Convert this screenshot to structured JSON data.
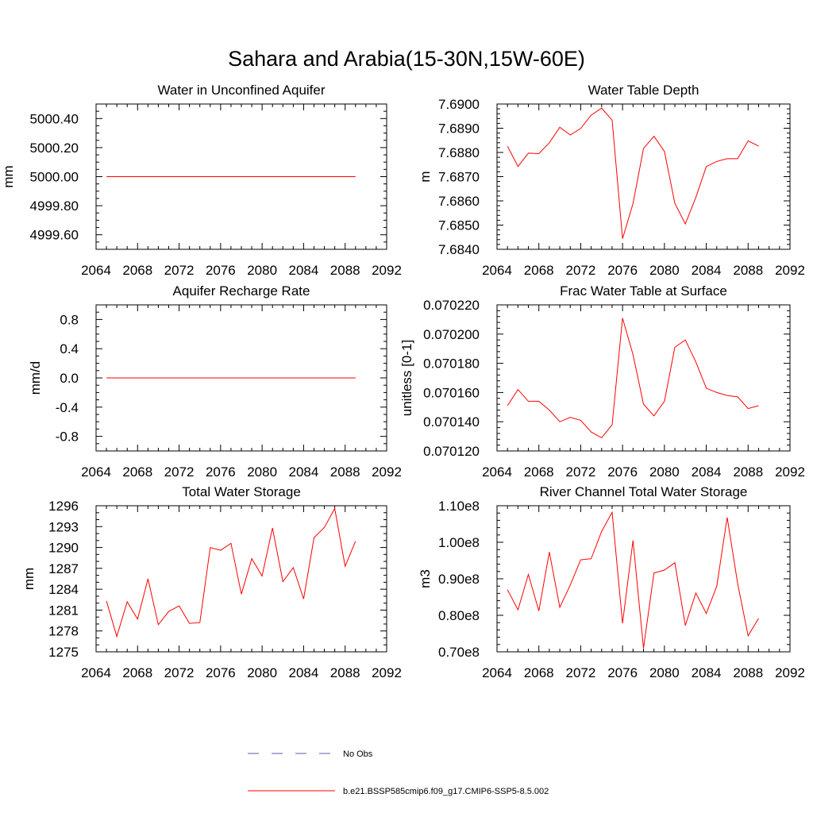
{
  "figure": {
    "title": "Sahara and Arabia(15-30N,15W-60E)",
    "legend": [
      {
        "label": "No Obs",
        "color": "#5a5ab4",
        "dash": true
      },
      {
        "label": "b.e21.BSSP585cmip6.f09_g17.CMIP6-SSP5-8.5.002",
        "color": "#ff0000",
        "dash": false
      }
    ]
  },
  "chart_data": [
    {
      "type": "line",
      "title": "Water in Unconfined Aquifer",
      "xlabel": "",
      "ylabel": "mm",
      "xlim": [
        2064,
        2092
      ],
      "ylim": [
        4999.5,
        5000.5
      ],
      "xticks": [
        "2064",
        "2068",
        "2072",
        "2076",
        "2080",
        "2084",
        "2088",
        "2092"
      ],
      "yticks": [
        "4999.60",
        "4999.80",
        "5000.00",
        "5000.20",
        "5000.40"
      ],
      "ytick_values": [
        4999.6,
        4999.8,
        5000.0,
        5000.2,
        5000.4
      ],
      "yminor": [
        4999.5,
        4999.55,
        4999.65,
        4999.7,
        4999.75,
        4999.85,
        4999.9,
        4999.95,
        5000.05,
        5000.1,
        5000.15,
        5000.25,
        5000.3,
        5000.35,
        5000.45,
        5000.5
      ],
      "x": [
        2065,
        2066,
        2067,
        2068,
        2069,
        2070,
        2071,
        2072,
        2073,
        2074,
        2075,
        2076,
        2077,
        2078,
        2079,
        2080,
        2081,
        2082,
        2083,
        2084,
        2085,
        2086,
        2087,
        2088,
        2089
      ],
      "series": [
        {
          "color": "#ff0000",
          "values": [
            5000,
            5000,
            5000,
            5000,
            5000,
            5000,
            5000,
            5000,
            5000,
            5000,
            5000,
            5000,
            5000,
            5000,
            5000,
            5000,
            5000,
            5000,
            5000,
            5000,
            5000,
            5000,
            5000,
            5000,
            5000
          ]
        }
      ]
    },
    {
      "type": "line",
      "title": "Water Table Depth",
      "xlabel": "",
      "ylabel": "m",
      "xlim": [
        2064,
        2092
      ],
      "ylim": [
        7.684,
        7.69
      ],
      "xticks": [
        "2064",
        "2068",
        "2072",
        "2076",
        "2080",
        "2084",
        "2088",
        "2092"
      ],
      "yticks": [
        "7.6840",
        "7.6850",
        "7.6860",
        "7.6870",
        "7.6880",
        "7.6890",
        "7.6900"
      ],
      "ytick_values": [
        7.684,
        7.685,
        7.686,
        7.687,
        7.688,
        7.689,
        7.69
      ],
      "yminor": [
        7.6842,
        7.6844,
        7.6846,
        7.6848,
        7.6852,
        7.6854,
        7.6856,
        7.6858,
        7.6862,
        7.6864,
        7.6866,
        7.6868,
        7.6872,
        7.6874,
        7.6876,
        7.6878,
        7.6882,
        7.6884,
        7.6886,
        7.6888,
        7.6892,
        7.6894,
        7.6896,
        7.6898
      ],
      "x": [
        2065,
        2066,
        2067,
        2068,
        2069,
        2070,
        2071,
        2072,
        2073,
        2074,
        2075,
        2076,
        2077,
        2078,
        2079,
        2080,
        2081,
        2082,
        2083,
        2084,
        2085,
        2086,
        2087,
        2088,
        2089
      ],
      "series": [
        {
          "color": "#ff0000",
          "values": [
            7.68826,
            7.68742,
            7.68797,
            7.68795,
            7.6884,
            7.68904,
            7.68872,
            7.68899,
            7.68954,
            7.68983,
            7.68933,
            7.68444,
            7.68589,
            7.68816,
            7.68867,
            7.68804,
            7.6859,
            7.68505,
            7.68614,
            7.68742,
            7.68763,
            7.68774,
            7.68774,
            7.68848,
            7.68826
          ]
        }
      ]
    },
    {
      "type": "line",
      "title": "Aquifer Recharge Rate",
      "xlabel": "",
      "ylabel": "mm/d",
      "xlim": [
        2064,
        2092
      ],
      "ylim": [
        -1.0,
        1.0
      ],
      "xticks": [
        "2064",
        "2068",
        "2072",
        "2076",
        "2080",
        "2084",
        "2088",
        "2092"
      ],
      "yticks": [
        "-0.8",
        "-0.4",
        "0.0",
        "0.4",
        "0.8"
      ],
      "ytick_values": [
        -0.8,
        -0.4,
        0.0,
        0.4,
        0.8
      ],
      "yminor": [
        -1.0,
        -0.9,
        -0.7,
        -0.6,
        -0.5,
        -0.3,
        -0.2,
        -0.1,
        0.1,
        0.2,
        0.3,
        0.5,
        0.6,
        0.7,
        0.9,
        1.0
      ],
      "x": [
        2065,
        2066,
        2067,
        2068,
        2069,
        2070,
        2071,
        2072,
        2073,
        2074,
        2075,
        2076,
        2077,
        2078,
        2079,
        2080,
        2081,
        2082,
        2083,
        2084,
        2085,
        2086,
        2087,
        2088,
        2089
      ],
      "series": [
        {
          "color": "#ff0000",
          "values": [
            0,
            0,
            0,
            0,
            0,
            0,
            0,
            0,
            0,
            0,
            0,
            0,
            0,
            0,
            0,
            0,
            0,
            0,
            0,
            0,
            0,
            0,
            0,
            0,
            0
          ]
        }
      ]
    },
    {
      "type": "line",
      "title": "Frac Water Table at Surface",
      "xlabel": "",
      "ylabel": "unitless [0-1]",
      "xlim": [
        2064,
        2092
      ],
      "ylim": [
        0.07012,
        0.07022
      ],
      "xticks": [
        "2064",
        "2068",
        "2072",
        "2076",
        "2080",
        "2084",
        "2088",
        "2092"
      ],
      "yticks": [
        "0.070120",
        "0.070140",
        "0.070160",
        "0.070180",
        "0.070200",
        "0.070220"
      ],
      "ytick_values": [
        0.07012,
        0.07014,
        0.07016,
        0.07018,
        0.0702,
        0.07022
      ],
      "yminor": [
        0.070124,
        0.070128,
        0.070132,
        0.070136,
        0.070144,
        0.070148,
        0.070152,
        0.070156,
        0.070164,
        0.070168,
        0.070172,
        0.070176,
        0.070184,
        0.070188,
        0.070192,
        0.070196,
        0.070204,
        0.070208,
        0.070212,
        0.070216
      ],
      "x": [
        2065,
        2066,
        2067,
        2068,
        2069,
        2070,
        2071,
        2072,
        2073,
        2074,
        2075,
        2076,
        2077,
        2078,
        2079,
        2080,
        2081,
        2082,
        2083,
        2084,
        2085,
        2086,
        2087,
        2088,
        2089
      ],
      "series": [
        {
          "color": "#ff0000",
          "values": [
            0.070151,
            0.070162,
            0.070154,
            0.070154,
            0.070148,
            0.07014,
            0.070143,
            0.070141,
            0.070133,
            0.070129,
            0.070138,
            0.070211,
            0.070186,
            0.070152,
            0.070144,
            0.070154,
            0.070191,
            0.070196,
            0.070181,
            0.070163,
            0.07016,
            0.070158,
            0.070157,
            0.070149,
            0.070151
          ]
        }
      ]
    },
    {
      "type": "line",
      "title": "Total Water Storage",
      "xlabel": "",
      "ylabel": "mm",
      "xlim": [
        2064,
        2092
      ],
      "ylim": [
        1275,
        1296
      ],
      "xticks": [
        "2064",
        "2068",
        "2072",
        "2076",
        "2080",
        "2084",
        "2088",
        "2092"
      ],
      "yticks": [
        "1275",
        "1278",
        "1281",
        "1284",
        "1287",
        "1290",
        "1293",
        "1296"
      ],
      "ytick_values": [
        1275,
        1278,
        1281,
        1284,
        1287,
        1290,
        1293,
        1296
      ],
      "yminor": [
        1276,
        1277,
        1279,
        1280,
        1282,
        1283,
        1285,
        1286,
        1288,
        1289,
        1291,
        1292,
        1294,
        1295
      ],
      "x": [
        2065,
        2066,
        2067,
        2068,
        2069,
        2070,
        2071,
        2072,
        2073,
        2074,
        2075,
        2076,
        2077,
        2078,
        2079,
        2080,
        2081,
        2082,
        2083,
        2084,
        2085,
        2086,
        2087,
        2088,
        2089
      ],
      "series": [
        {
          "color": "#ff0000",
          "values": [
            1282.3,
            1277.2,
            1282.2,
            1279.7,
            1285.5,
            1278.9,
            1280.8,
            1281.6,
            1279.1,
            1279.2,
            1290.0,
            1289.6,
            1290.6,
            1283.3,
            1288.4,
            1285.9,
            1292.8,
            1285.1,
            1287.1,
            1282.6,
            1291.4,
            1292.9,
            1295.6,
            1287.3,
            1290.9
          ]
        }
      ]
    },
    {
      "type": "line",
      "title": "River Channel Total Water Storage",
      "xlabel": "",
      "ylabel": "m3",
      "xlim": [
        2064,
        2092
      ],
      "ylim": [
        70000000,
        110000000
      ],
      "xticks": [
        "2064",
        "2068",
        "2072",
        "2076",
        "2080",
        "2084",
        "2088",
        "2092"
      ],
      "yticks": [
        "0.70e8",
        "0.80e8",
        "0.90e8",
        "1.00e8",
        "1.10e8"
      ],
      "ytick_values": [
        70000000,
        80000000,
        90000000,
        100000000,
        110000000
      ],
      "yminor": [
        72000000,
        74000000,
        76000000,
        78000000,
        82000000,
        84000000,
        86000000,
        88000000,
        92000000,
        94000000,
        96000000,
        98000000,
        102000000,
        104000000,
        106000000,
        108000000
      ],
      "x": [
        2065,
        2066,
        2067,
        2068,
        2069,
        2070,
        2071,
        2072,
        2073,
        2074,
        2075,
        2076,
        2077,
        2078,
        2079,
        2080,
        2081,
        2082,
        2083,
        2084,
        2085,
        2086,
        2087,
        2088,
        2089
      ],
      "series": [
        {
          "color": "#ff0000",
          "values": [
            87000000,
            81500000,
            91200000,
            81200000,
            97300000,
            82200000,
            88300000,
            95200000,
            95500000,
            103000000,
            108200000,
            77800000,
            100500000,
            71000000,
            91600000,
            92400000,
            94400000,
            77200000,
            86100000,
            80500000,
            88000000,
            106800000,
            88700000,
            74400000,
            79200000
          ]
        }
      ]
    }
  ]
}
